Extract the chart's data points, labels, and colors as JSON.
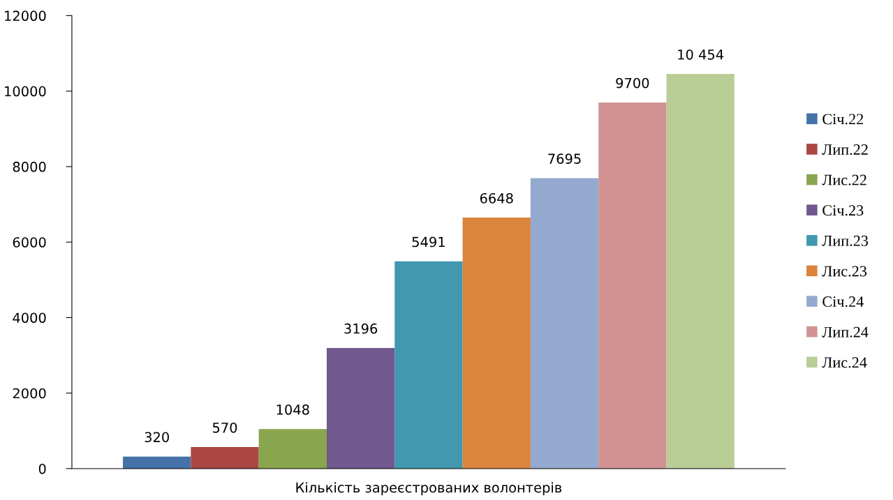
{
  "chart_data": {
    "type": "bar",
    "categories": [
      "Кількість зареєстрованих волонтерів"
    ],
    "series": [
      {
        "name": "Січ.22",
        "color": "#4572a7",
        "values": [
          320
        ],
        "value_labels": [
          "320"
        ]
      },
      {
        "name": "Лип.22",
        "color": "#aa4643",
        "values": [
          570
        ],
        "value_labels": [
          "570"
        ]
      },
      {
        "name": "Лис.22",
        "color": "#89a54e",
        "values": [
          1048
        ],
        "value_labels": [
          "1048"
        ]
      },
      {
        "name": "Січ.23",
        "color": "#71588f",
        "values": [
          3196
        ],
        "value_labels": [
          "3196"
        ]
      },
      {
        "name": "Лип.23",
        "color": "#4198af",
        "values": [
          5491
        ],
        "value_labels": [
          "5491"
        ]
      },
      {
        "name": "Лис.23",
        "color": "#db843d",
        "values": [
          6648
        ],
        "value_labels": [
          "6648"
        ]
      },
      {
        "name": "Січ.24",
        "color": "#93a9cf",
        "values": [
          7695
        ],
        "value_labels": [
          "7695"
        ]
      },
      {
        "name": "Лип.24",
        "color": "#d19392",
        "values": [
          9700
        ],
        "value_labels": [
          "9700"
        ]
      },
      {
        "name": "Лис.24",
        "color": "#b9cd96",
        "values": [
          10454
        ],
        "value_labels": [
          "10 454"
        ]
      }
    ],
    "ylim": [
      0,
      12000
    ],
    "yticks": [
      0,
      2000,
      4000,
      6000,
      8000,
      10000,
      12000
    ],
    "grid": false,
    "legend": "right"
  }
}
